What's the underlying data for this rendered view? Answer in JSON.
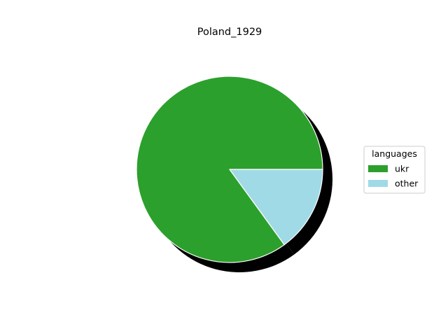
{
  "chart_data": {
    "type": "pie",
    "title": "Poland_1929",
    "legend": {
      "title": "languages",
      "placement": "right"
    },
    "slices": [
      {
        "label": "ukr",
        "value": 0.85,
        "color": "#2ca02c"
      },
      {
        "label": "other",
        "value": 0.15,
        "color": "#a0dae6"
      }
    ],
    "start_angle_deg": 0,
    "direction": "counterclockwise",
    "shadow_color": "#000000",
    "edge_color": "#ffffff"
  }
}
